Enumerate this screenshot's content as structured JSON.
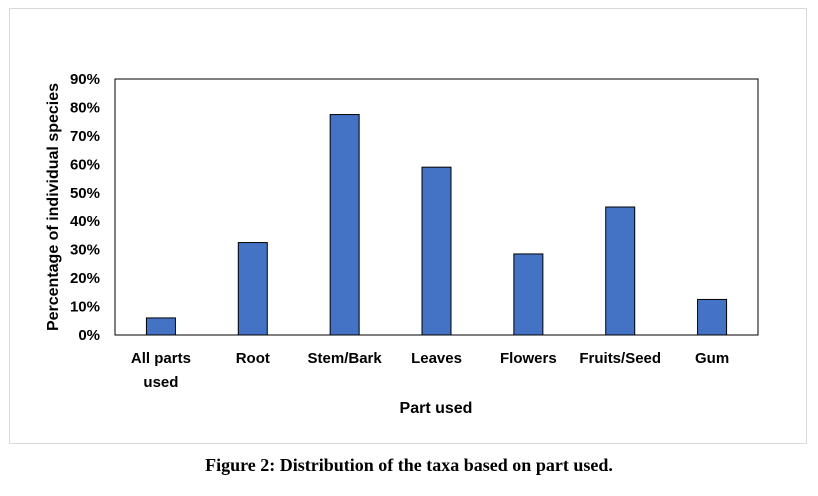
{
  "chart_data": {
    "type": "bar",
    "categories": [
      [
        "All parts",
        "used"
      ],
      [
        "Root"
      ],
      [
        "Stem/Bark"
      ],
      [
        "Leaves"
      ],
      [
        "Flowers"
      ],
      [
        "Fruits/Seed"
      ],
      [
        "Gum"
      ]
    ],
    "values": [
      6,
      32.5,
      77.5,
      59,
      28.5,
      45,
      12.5
    ],
    "xlabel": "Part used",
    "ylabel": "Percentage of individual species",
    "ylim": [
      0,
      90
    ],
    "yticks": [
      "0%",
      "10%",
      "20%",
      "30%",
      "40%",
      "50%",
      "60%",
      "70%",
      "80%",
      "90%"
    ],
    "bar_color": "#4472c4",
    "grid": false,
    "legend": "none"
  },
  "caption": "Figure 2: Distribution of the taxa based on part used."
}
